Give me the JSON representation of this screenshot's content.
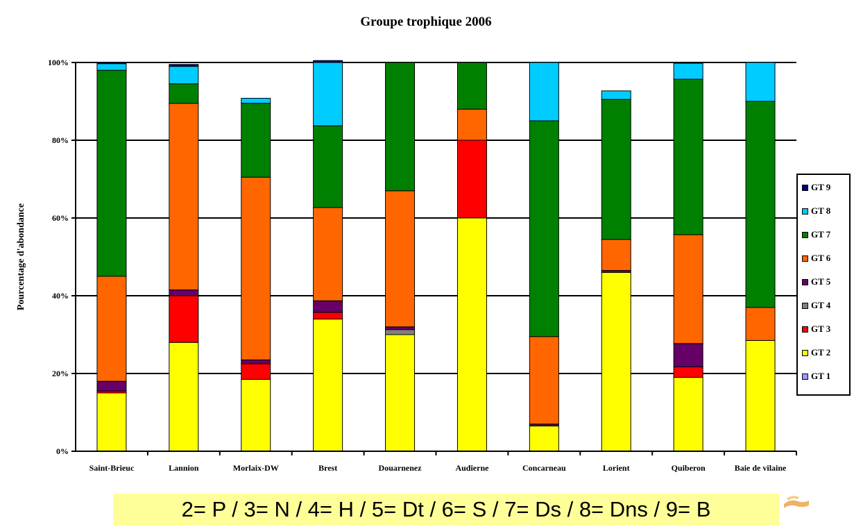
{
  "chart_data": {
    "type": "bar",
    "stacked": true,
    "title": "Groupe trophique 2006",
    "xlabel": "",
    "ylabel": "Pourcentage d'abondance",
    "ylim": [
      0,
      100
    ],
    "y_ticks": [
      "0%",
      "20%",
      "40%",
      "60%",
      "80%",
      "100%"
    ],
    "grid": true,
    "legend_position": "right",
    "categories": [
      "Saint-Brieuc",
      "Lannion",
      "Morlaix-DW",
      "Brest",
      "Douarnenez",
      "Audierne",
      "Concarneau",
      "Lorient",
      "Quiberon",
      "Baie de vilaine"
    ],
    "series": [
      {
        "name": "GT 1",
        "color": "#9999ff",
        "values": [
          0,
          0,
          0,
          0,
          0,
          0,
          0,
          0,
          0,
          0
        ]
      },
      {
        "name": "GT 2",
        "color": "#ffff00",
        "values": [
          15,
          28,
          18.5,
          34,
          30,
          60,
          6.5,
          46,
          19,
          28.5
        ]
      },
      {
        "name": "GT 3",
        "color": "#ff0000",
        "values": [
          0.5,
          12,
          4,
          1.7,
          0,
          20,
          0,
          0,
          2.7,
          0
        ]
      },
      {
        "name": "GT 4",
        "color": "#808080",
        "values": [
          0,
          0,
          0,
          0,
          1.3,
          0,
          0,
          0,
          0,
          0
        ]
      },
      {
        "name": "GT 5",
        "color": "#660066",
        "values": [
          2.5,
          1.5,
          1,
          3,
          0.7,
          0,
          0.5,
          0.5,
          6,
          0
        ]
      },
      {
        "name": "GT 6",
        "color": "#ff6600",
        "values": [
          27,
          48,
          47,
          24,
          35,
          8,
          22.5,
          8,
          28,
          8.5
        ]
      },
      {
        "name": "GT 7",
        "color": "#008000",
        "values": [
          53,
          5,
          19,
          21,
          33,
          12,
          55.5,
          36,
          40,
          53
        ]
      },
      {
        "name": "GT 8",
        "color": "#00ccff",
        "values": [
          1.7,
          4.5,
          1.3,
          16.3,
          0,
          0,
          15,
          2.2,
          4.1,
          10
        ]
      },
      {
        "name": "GT 9",
        "color": "#000080",
        "values": [
          0.3,
          0.5,
          0,
          0.5,
          0,
          0,
          0,
          0,
          0,
          0
        ]
      }
    ],
    "annotations": [
      {
        "text": "2= P / 3= N / 4= H / 5= Dt / 6= S / 7= Ds / 8= Dns / 9= B"
      }
    ]
  },
  "legend_order": [
    "GT 9",
    "GT 8",
    "GT 7",
    "GT 6",
    "GT 5",
    "GT 4",
    "GT 3",
    "GT 2",
    "GT 1"
  ]
}
